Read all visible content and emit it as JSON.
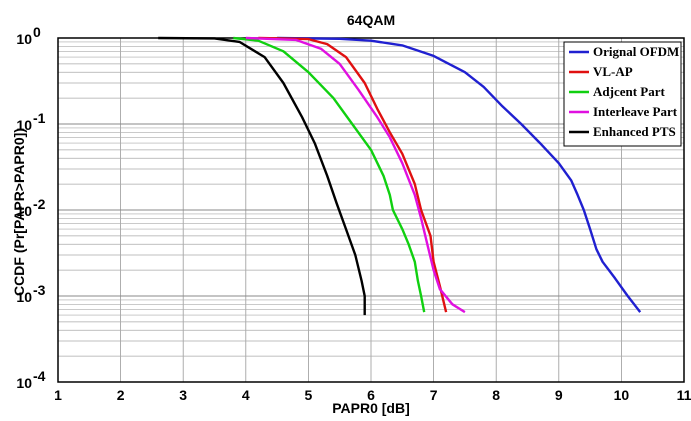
{
  "chart_data": {
    "type": "line",
    "title": "64QAM",
    "xlabel": "PAPR0 [dB]",
    "ylabel": "CCDF (Pr[PAPR>PAPR0])",
    "xlim": [
      1,
      11
    ],
    "ylim": [
      0.0001,
      1
    ],
    "yscale": "log",
    "grid": true,
    "legend_position": "top-right",
    "x_ticks": [
      "1",
      "2",
      "3",
      "4",
      "5",
      "6",
      "7",
      "8",
      "9",
      "10",
      "11"
    ],
    "y_ticks": [
      {
        "value": 0.0001,
        "base": "10",
        "exp": "-4"
      },
      {
        "value": 0.001,
        "base": "10",
        "exp": "-3"
      },
      {
        "value": 0.01,
        "base": "10",
        "exp": "-2"
      },
      {
        "value": 0.1,
        "base": "10",
        "exp": "-1"
      },
      {
        "value": 1,
        "base": "10",
        "exp": "0"
      }
    ],
    "series": [
      {
        "name": "Orignal OFDM",
        "color": "#2020d0",
        "points": [
          [
            4.5,
            1
          ],
          [
            5.5,
            0.98
          ],
          [
            6,
            0.93
          ],
          [
            6.5,
            0.82
          ],
          [
            7,
            0.62
          ],
          [
            7.5,
            0.4
          ],
          [
            7.8,
            0.27
          ],
          [
            8.1,
            0.16
          ],
          [
            8.4,
            0.1
          ],
          [
            8.7,
            0.06
          ],
          [
            9,
            0.035
          ],
          [
            9.2,
            0.022
          ],
          [
            9.3,
            0.015
          ],
          [
            9.4,
            0.01
          ],
          [
            9.5,
            0.006
          ],
          [
            9.6,
            0.0035
          ],
          [
            9.7,
            0.0025
          ],
          [
            9.9,
            0.0016
          ],
          [
            10.1,
            0.001
          ],
          [
            10.3,
            0.00065
          ]
        ]
      },
      {
        "name": "VL-AP",
        "color": "#e01010",
        "points": [
          [
            4.2,
            1
          ],
          [
            5,
            0.97
          ],
          [
            5.3,
            0.85
          ],
          [
            5.6,
            0.6
          ],
          [
            5.9,
            0.3
          ],
          [
            6.1,
            0.15
          ],
          [
            6.3,
            0.08
          ],
          [
            6.5,
            0.045
          ],
          [
            6.7,
            0.02
          ],
          [
            6.8,
            0.01
          ],
          [
            6.95,
            0.005
          ],
          [
            7.0,
            0.0025
          ],
          [
            7.1,
            0.0013
          ],
          [
            7.2,
            0.00065
          ]
        ]
      },
      {
        "name": "Adjcent Part",
        "color": "#10d010",
        "points": [
          [
            3.8,
            1
          ],
          [
            4.2,
            0.93
          ],
          [
            4.6,
            0.7
          ],
          [
            5.0,
            0.4
          ],
          [
            5.4,
            0.2
          ],
          [
            5.7,
            0.1
          ],
          [
            6.0,
            0.05
          ],
          [
            6.2,
            0.025
          ],
          [
            6.3,
            0.015
          ],
          [
            6.35,
            0.01
          ],
          [
            6.5,
            0.006
          ],
          [
            6.6,
            0.004
          ],
          [
            6.7,
            0.0025
          ],
          [
            6.75,
            0.0015
          ],
          [
            6.8,
            0.001
          ],
          [
            6.85,
            0.00065
          ]
        ]
      },
      {
        "name": "Interleave Part",
        "color": "#e010e0",
        "points": [
          [
            4.0,
            1
          ],
          [
            4.8,
            0.95
          ],
          [
            5.2,
            0.75
          ],
          [
            5.5,
            0.5
          ],
          [
            5.8,
            0.25
          ],
          [
            6.1,
            0.12
          ],
          [
            6.3,
            0.07
          ],
          [
            6.5,
            0.035
          ],
          [
            6.7,
            0.015
          ],
          [
            6.8,
            0.008
          ],
          [
            6.9,
            0.004
          ],
          [
            7.0,
            0.002
          ],
          [
            7.1,
            0.0012
          ],
          [
            7.3,
            0.0008
          ],
          [
            7.5,
            0.00065
          ]
        ]
      },
      {
        "name": "Enhanced PTS",
        "color": "#000000",
        "points": [
          [
            2.6,
            1
          ],
          [
            3.5,
            0.99
          ],
          [
            3.9,
            0.9
          ],
          [
            4.3,
            0.6
          ],
          [
            4.6,
            0.3
          ],
          [
            4.9,
            0.12
          ],
          [
            5.1,
            0.06
          ],
          [
            5.3,
            0.025
          ],
          [
            5.45,
            0.012
          ],
          [
            5.6,
            0.006
          ],
          [
            5.75,
            0.003
          ],
          [
            5.85,
            0.0015
          ],
          [
            5.9,
            0.001
          ],
          [
            5.9,
            0.0006
          ]
        ]
      }
    ]
  }
}
